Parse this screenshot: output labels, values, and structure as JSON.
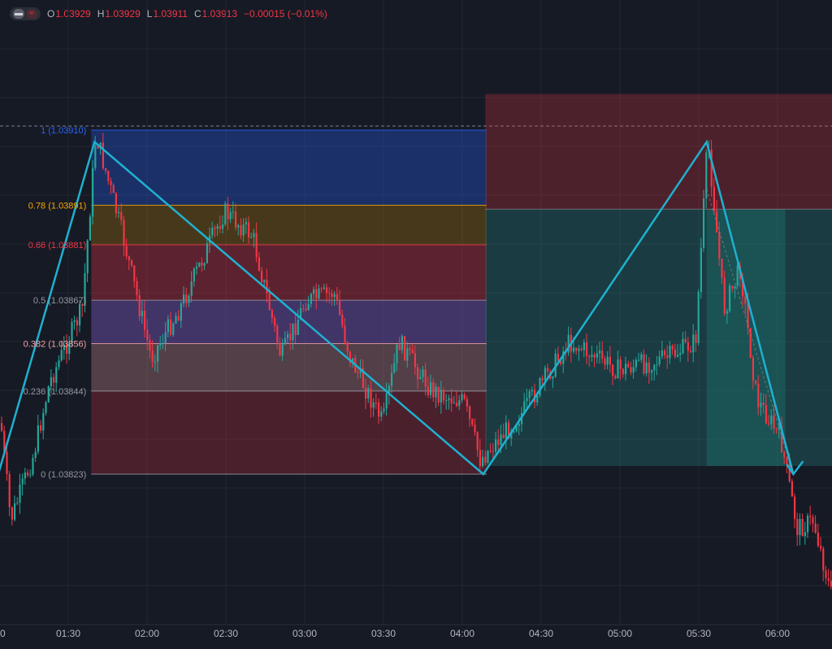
{
  "legend": {
    "open_label": "O",
    "open": "1.03929",
    "high_label": "H",
    "high": "1.03929",
    "low_label": "L",
    "low": "1.03911",
    "close_label": "C",
    "close": "1.03913",
    "change": "−0.00015 (−0.01%)"
  },
  "chart_data": {
    "type": "candlestick",
    "x_ticks": [
      "01:30",
      "02:00",
      "02:30",
      "03:00",
      "03:30",
      "04:00",
      "04:30",
      "05:00",
      "05:30",
      "06:00"
    ],
    "edge_tick": "0",
    "y_range": [
      1.03775,
      1.03935
    ],
    "fib_retracement": {
      "time_range": [
        "01:40",
        "04:08"
      ],
      "levels": [
        {
          "ratio": 1,
          "price": 1.0391,
          "label": "1 (1.03910)",
          "color": "#2962ff"
        },
        {
          "ratio": 0.78,
          "price": 1.03891,
          "label": "0.78 (1.03891)",
          "color": "#f7a600"
        },
        {
          "ratio": 0.66,
          "price": 1.03881,
          "label": "0.66 (1.03881)",
          "color": "#f23645"
        },
        {
          "ratio": 0.5,
          "price": 1.03867,
          "label": "0.5 (1.03867)",
          "color": "#9598a1"
        },
        {
          "ratio": 0.382,
          "price": 1.03856,
          "label": "0.382 (1.03856)",
          "color": "#f0a0a6"
        },
        {
          "ratio": 0.236,
          "price": 1.03844,
          "label": "0.236 (1.03844)",
          "color": "#9598a1"
        },
        {
          "ratio": 0,
          "price": 1.03823,
          "label": "0 (1.03823)",
          "color": "#9598a1"
        }
      ]
    },
    "short_position": {
      "time_range": [
        "04:10",
        "06:20"
      ],
      "stop_price": 1.03915,
      "entry_price": 1.0389,
      "target_price": 1.03823
    },
    "zigzag": [
      {
        "t": "00:52",
        "p": 1.03797
      },
      {
        "t": "01:40",
        "p": 1.03907
      },
      {
        "t": "04:08",
        "p": 1.03823
      },
      {
        "t": "05:33",
        "p": 1.03907
      },
      {
        "t": "06:06",
        "p": 1.03823
      }
    ],
    "zigzag_color": "#1fb0d0",
    "colors": {
      "up": "#26a69a",
      "down": "#f23645",
      "grid": "#222631"
    }
  }
}
